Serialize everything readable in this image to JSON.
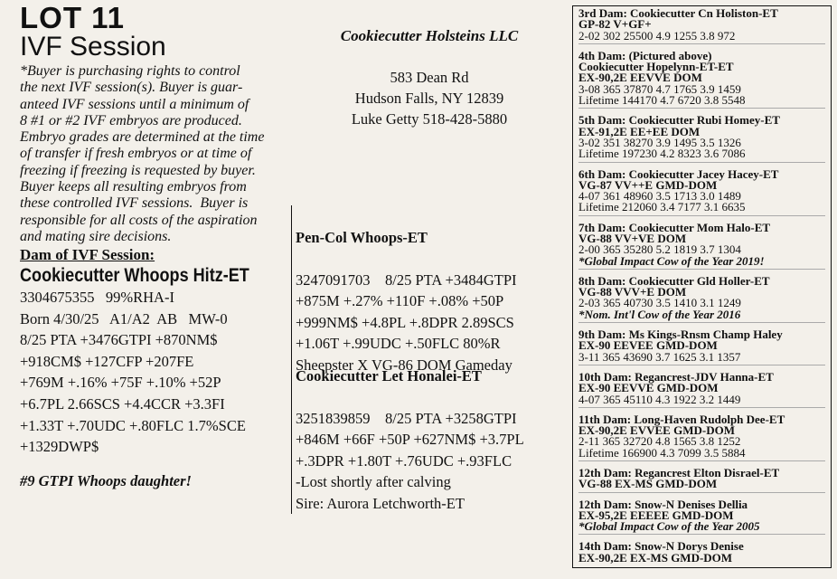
{
  "header": {
    "lot": "LOT 11",
    "title": "IVF Session"
  },
  "intro": [
    "*Buyer is purchasing rights to control",
    "the next IVF session(s). Buyer is guar-",
    "anteed IVF sessions until a minimum of",
    "8 #1 or #2 IVF embryos are produced.",
    "Embryo grades are determined at the time",
    "of transfer if fresh embryos or at time of",
    "freezing if freezing is requested by buyer.",
    "Buyer keeps all resulting embryos from",
    "these controlled IVF sessions.  Buyer is",
    "responsible for all costs of the aspiration",
    "and mating sire decisions."
  ],
  "dam": {
    "heading": "Dam of IVF Session:",
    "name": "Cookiecutter Whoops Hitz-ET",
    "lines": [
      "3304675355   99%RHA-I",
      "Born 4/30/25   A1/A2  AB   MW-0",
      "8/25 PTA +3476GTPI +870NM$",
      "+918CM$ +127CFP +207FE",
      "+769M +.16% +75F +.10% +52P",
      "+6.7PL 2.66SCS +4.4CCR +3.3FI",
      "+1.33T +.70UDC +.80FLC 1.7%SCE",
      "+1329DWP$"
    ],
    "note": "#9 GTPI Whoops daughter!"
  },
  "consignor": {
    "name": "Cookiecutter Holsteins LLC",
    "lines": [
      "583 Dean Rd",
      "Hudson Falls, NY 12839",
      "Luke Getty 518-428-5880"
    ]
  },
  "sire": {
    "name": "Pen-Col Whoops-ET",
    "lines": [
      "3247091703    8/25 PTA +3484GTPI",
      "+875M +.27% +110F +.08% +50P",
      "+999NM$ +4.8PL +.8DPR 2.89SCS",
      "+1.06T +.99UDC +.50FLC 80%R",
      "Sheepster X VG-86 DOM Gameday"
    ]
  },
  "grandam": {
    "name": "Cookiecutter Let Honalei-ET",
    "lines": [
      "3251839859    8/25 PTA +3258GTPI",
      "+846M +66F +50P +627NM$ +3.7PL",
      "+.3DPR +1.80T +.76UDC +.93FLC",
      "-Lost shortly after calving",
      "Sire: Aurora Letchworth-ET"
    ]
  },
  "pedigree": [
    {
      "heading": [
        "3rd Dam: Cookiecutter Cn Holiston-ET",
        "GP-82  V+GF+"
      ],
      "records": [
        "2-02 302 25500 4.9 1255 3.8 972"
      ]
    },
    {
      "heading": [
        "4th Dam: (Pictured above)",
        "Cookiecutter Hopelynn-ET-ET",
        "EX-90,2E  EEVVE   DOM"
      ],
      "records": [
        "3-08 365 37870 4.7 1765 3.9 1459",
        "Lifetime 144170 4.7 6720 3.8 5548"
      ]
    },
    {
      "heading": [
        "5th Dam: Cookiecutter Rubi Homey-ET",
        "EX-91,2E EE+EE  DOM"
      ],
      "records": [
        "3-02 351 38270 3.9 1495 3.5 1326",
        "Lifetime 197230 4.2 8323 3.6 7086"
      ]
    },
    {
      "heading": [
        "6th Dam: Cookiecutter Jacey Hacey-ET",
        "VG-87  VV++E  GMD-DOM"
      ],
      "records": [
        "4-07 361 48960 3.5 1713 3.0 1489",
        "Lifetime 212060 3.4 7177 3.1 6635"
      ]
    },
    {
      "heading": [
        "7th Dam: Cookiecutter Mom Halo-ET",
        "VG-88  VV+VE  DOM"
      ],
      "records": [
        "2-00 365 35280 5.2 1819 3.7 1304"
      ],
      "note": "*Global Impact Cow of the Year 2019!"
    },
    {
      "heading": [
        "8th Dam: Cookiecutter Gld Holler-ET",
        "VG-88  VVV+E  DOM"
      ],
      "records": [
        "2-03  365 40730 3.5 1410 3.1 1249"
      ],
      "note": "*Nom. Int'l Cow of the Year 2016"
    },
    {
      "heading": [
        "9th Dam: Ms Kings-Rnsm Champ Haley",
        "EX-90  EEVEE  GMD-DOM"
      ],
      "records": [
        "3-11 365 43690 3.7 1625 3.1 1357"
      ]
    },
    {
      "heading": [
        "10th Dam: Regancrest-JDV Hanna-ET",
        "EX-90  EEVVE  GMD-DOM"
      ],
      "records": [
        "4-07 365 45110 4.3 1922 3.2 1449"
      ]
    },
    {
      "heading": [
        "11th Dam: Long-Haven Rudolph Dee-ET",
        "EX-90,2E  EVVEE  GMD-DOM"
      ],
      "records": [
        "2-11 365 32720 4.8 1565 3.8 1252",
        "Lifetime 166900 4.3 7099 3.5 5884"
      ]
    },
    {
      "heading": [
        "12th Dam: Regancrest Elton Disrael-ET",
        "VG-88  EX-MS  GMD-DOM"
      ]
    },
    {
      "heading": [
        "12th Dam: Snow-N Denises Dellia",
        "EX-95,2E  EEEEE  GMD-DOM"
      ],
      "note": "*Global Impact Cow of the Year 2005"
    },
    {
      "heading": [
        "14th Dam: Snow-N Dorys Denise",
        "EX-90,2E  EX-MS  GMD-DOM"
      ]
    }
  ]
}
